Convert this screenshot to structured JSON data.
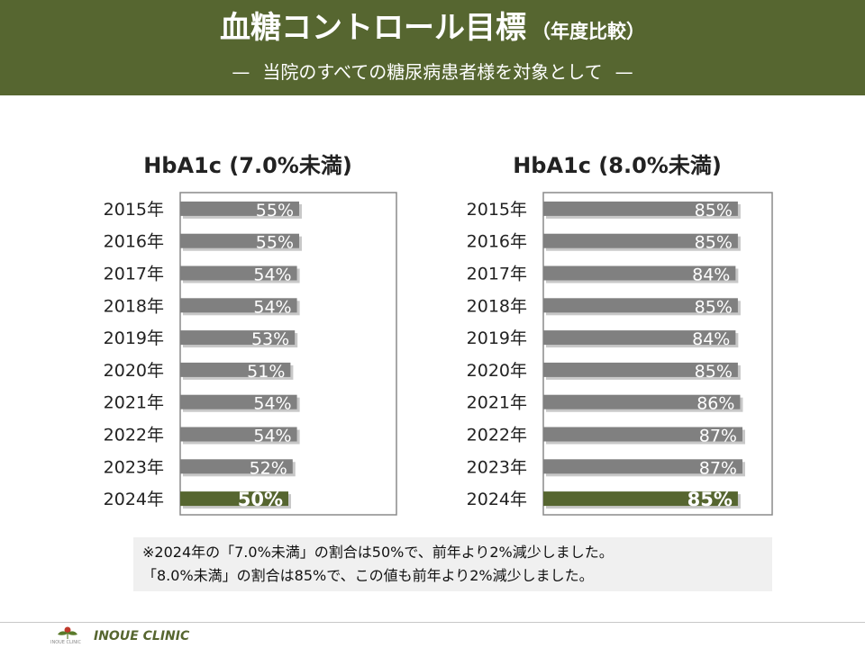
{
  "header": {
    "title": "血糖コントロール目標",
    "title_suffix": "（年度比較）",
    "subtitle": "当院のすべての糖尿病患者様を対象として",
    "subtitle_dash": "—",
    "background_color": "#566630"
  },
  "chart_data": [
    {
      "type": "bar",
      "orientation": "horizontal",
      "title": "HbA1c (7.0%未満)",
      "categories": [
        "2015年",
        "2016年",
        "2017年",
        "2018年",
        "2019年",
        "2020年",
        "2021年",
        "2022年",
        "2023年",
        "2024年"
      ],
      "values": [
        55,
        55,
        54,
        54,
        53,
        51,
        54,
        54,
        52,
        50
      ],
      "value_labels": [
        "55%",
        "55%",
        "54%",
        "54%",
        "53%",
        "51%",
        "54%",
        "54%",
        "52%",
        "50%"
      ],
      "xlim": [
        0,
        100
      ],
      "highlight_index": 9,
      "bar_color": "#808080",
      "highlight_color": "#566630",
      "grid": false
    },
    {
      "type": "bar",
      "orientation": "horizontal",
      "title": "HbA1c (8.0%未満)",
      "categories": [
        "2015年",
        "2016年",
        "2017年",
        "2018年",
        "2019年",
        "2020年",
        "2021年",
        "2022年",
        "2023年",
        "2024年"
      ],
      "values": [
        85,
        85,
        84,
        85,
        84,
        85,
        86,
        87,
        87,
        85
      ],
      "value_labels": [
        "85%",
        "85%",
        "84%",
        "85%",
        "84%",
        "85%",
        "86%",
        "87%",
        "87%",
        "85%"
      ],
      "xlim": [
        0,
        100
      ],
      "highlight_index": 9,
      "bar_color": "#808080",
      "highlight_color": "#566630",
      "grid": false
    }
  ],
  "note": {
    "line1": "※2024年の「7.0%未満」の割合は50%で、前年より2%減少しました。",
    "line2": "「8.0%未満」の割合は85%で、この値も前年より2%減少しました。"
  },
  "footer": {
    "clinic_name": "INOUE CLINIC",
    "logo_text": "INOUE CLINIC",
    "logo_icon": "clover-logo-icon"
  }
}
